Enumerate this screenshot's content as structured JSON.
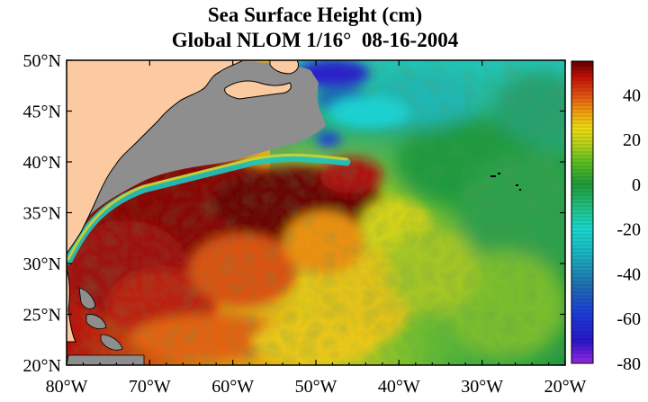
{
  "title": {
    "line1": "Sea Surface Height (cm)",
    "line2": "Global NLOM 1/16°  08-16-2004"
  },
  "map": {
    "region": "North Atlantic / US East Coast",
    "lat_range": [
      20,
      50
    ],
    "lon_range": [
      -80,
      -20
    ],
    "lat_labels": [
      "50°N",
      "45°N",
      "40°N",
      "35°N",
      "30°N",
      "25°N",
      "20°N"
    ],
    "lon_labels": [
      "80°W",
      "70°W",
      "60°W",
      "50°W",
      "40°W",
      "30°W",
      "20°W"
    ],
    "colors": {
      "land": "#fccaa0",
      "shelf": "#8e8e8e",
      "coastline": "#000000"
    }
  },
  "colorbar": {
    "unit": "cm",
    "min": -80,
    "max": 55,
    "tick_labels": [
      "40",
      "20",
      "0",
      "-20",
      "-40",
      "-60",
      "-80"
    ],
    "tick_values": [
      40,
      20,
      0,
      -20,
      -40,
      -60,
      -80
    ],
    "stops": [
      {
        "v": -80,
        "c": "#9a28e6"
      },
      {
        "v": -70,
        "c": "#2a16c8"
      },
      {
        "v": -58,
        "c": "#1c3cd8"
      },
      {
        "v": -45,
        "c": "#1f6fb0"
      },
      {
        "v": -32,
        "c": "#1bb0c0"
      },
      {
        "v": -20,
        "c": "#1ad8d0"
      },
      {
        "v": -10,
        "c": "#22c080"
      },
      {
        "v": 0,
        "c": "#1e9a3a"
      },
      {
        "v": 10,
        "c": "#5cbf20"
      },
      {
        "v": 18,
        "c": "#b7d21a"
      },
      {
        "v": 25,
        "c": "#eedc10"
      },
      {
        "v": 32,
        "c": "#f0a010"
      },
      {
        "v": 40,
        "c": "#e05010"
      },
      {
        "v": 48,
        "c": "#c01008"
      },
      {
        "v": 55,
        "c": "#600000"
      }
    ]
  }
}
